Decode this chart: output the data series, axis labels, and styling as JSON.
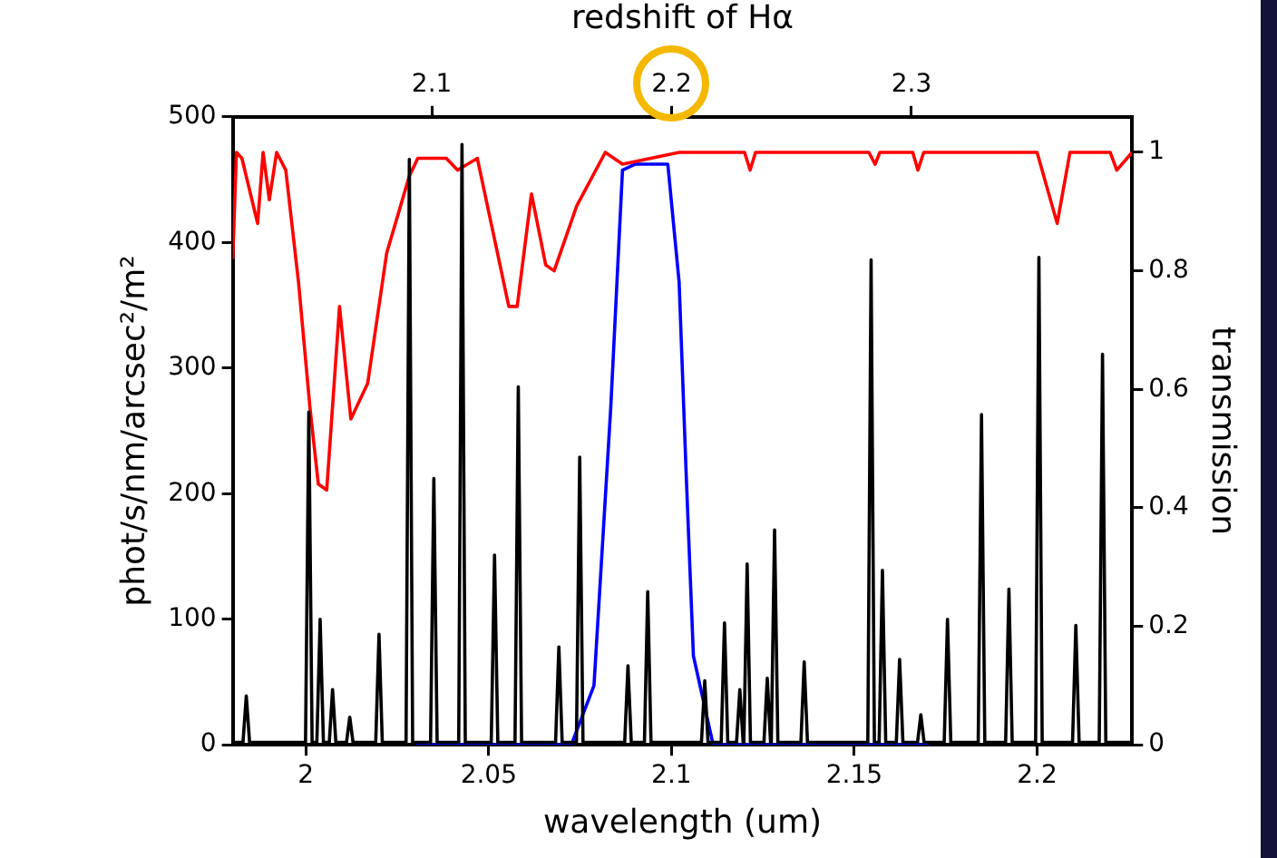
{
  "chart_data": {
    "type": "line",
    "xlabel": "wavelength (um)",
    "ylabel": "phot/s/nm/arcsec²/m²",
    "y2label": "transmission",
    "x2label": "redshift of Hα",
    "xlim": [
      1.98,
      2.226
    ],
    "xticks": [
      2,
      2.05,
      2.1,
      2.15,
      2.2
    ],
    "x2lim": [
      2.017,
      2.392
    ],
    "x2ticks": [
      2.1,
      2.2,
      2.3
    ],
    "ylim": [
      0,
      500
    ],
    "yticks": [
      0,
      100,
      200,
      300,
      400,
      500
    ],
    "y2lim": [
      0,
      1.06
    ],
    "y2ticks": [
      0,
      0.2,
      0.4,
      0.6,
      0.8,
      1
    ],
    "grid": false,
    "series": [
      {
        "color": "#000000",
        "x": [
          1.98,
          1.9828,
          1.9837,
          1.9846,
          1.9999,
          2.0008,
          2.0017,
          2.003,
          2.0039,
          2.0048,
          2.0064,
          2.0073,
          2.0082,
          2.0111,
          2.012,
          2.0129,
          2.0191,
          2.02,
          2.0209,
          2.0274,
          2.0283,
          2.0292,
          2.0341,
          2.035,
          2.0359,
          2.0418,
          2.0427,
          2.0436,
          2.0507,
          2.0516,
          2.0525,
          2.0572,
          2.0581,
          2.059,
          2.0683,
          2.0692,
          2.0701,
          2.074,
          2.0749,
          2.0758,
          2.0872,
          2.0881,
          2.089,
          2.0926,
          2.0935,
          2.0944,
          2.1082,
          2.1091,
          2.11,
          2.1136,
          2.1145,
          2.1154,
          2.1178,
          2.1187,
          2.1196,
          2.1198,
          2.1207,
          2.1216,
          2.1253,
          2.1262,
          2.1271,
          2.1273,
          2.1282,
          2.1291,
          2.1354,
          2.1363,
          2.1372,
          2.1537,
          2.1546,
          2.1555,
          2.1568,
          2.1577,
          2.1586,
          2.1615,
          2.1624,
          2.1633,
          2.1673,
          2.1682,
          2.1691,
          2.1746,
          2.1755,
          2.1764,
          2.1839,
          2.1848,
          2.1857,
          2.1914,
          2.1923,
          2.1932,
          2.1996,
          2.2005,
          2.2014,
          2.2097,
          2.2106,
          2.2115,
          2.217,
          2.2179,
          2.2188,
          2.226
        ],
        "values": [
          2,
          2,
          39,
          2,
          2,
          265,
          2,
          2,
          100,
          2,
          2,
          44,
          2,
          2,
          22,
          2,
          2,
          88,
          2,
          2,
          466,
          2,
          2,
          212,
          2,
          2,
          478,
          2,
          2,
          151,
          2,
          2,
          285,
          2,
          2,
          78,
          2,
          2,
          229,
          2,
          2,
          63,
          2,
          2,
          122,
          2,
          2,
          51,
          2,
          2,
          97,
          2,
          2,
          44,
          2,
          2,
          144,
          2,
          2,
          53,
          2,
          2,
          171,
          2,
          2,
          66,
          2,
          2,
          386,
          2,
          2,
          139,
          2,
          2,
          68,
          2,
          2,
          24,
          2,
          2,
          100,
          2,
          2,
          263,
          2,
          2,
          124,
          2,
          2,
          388,
          2,
          2,
          95,
          2,
          2,
          311,
          2,
          2
        ]
      },
      {
        "color": "#ff0000",
        "axis": "y2",
        "x": [
          1.98,
          1.981,
          1.9825,
          1.9868,
          1.9883,
          1.99,
          1.992,
          1.9945,
          1.998,
          2.0011,
          2.0034,
          2.0057,
          2.0092,
          2.0123,
          2.0169,
          2.0221,
          2.0283,
          2.0306,
          2.0384,
          2.0415,
          2.0469,
          2.0555,
          2.0578,
          2.0617,
          2.0656,
          2.0679,
          2.0741,
          2.0819,
          2.0866,
          2.1021,
          2.12,
          2.1215,
          2.123,
          2.154,
          2.1557,
          2.157,
          2.166,
          2.1674,
          2.169,
          2.2,
          2.2055,
          2.209,
          2.22,
          2.2218,
          2.226
        ],
        "values": [
          0.82,
          1,
          0.99,
          0.88,
          1,
          0.92,
          1,
          0.97,
          0.78,
          0.57,
          0.44,
          0.43,
          0.74,
          0.55,
          0.61,
          0.83,
          0.96,
          0.99,
          0.99,
          0.97,
          0.99,
          0.74,
          0.74,
          0.93,
          0.81,
          0.8,
          0.91,
          1,
          0.98,
          1,
          1,
          0.97,
          1,
          1,
          0.98,
          1,
          1,
          0.97,
          1,
          1,
          0.88,
          1,
          1,
          0.97,
          1
        ]
      },
      {
        "color": "#0000ff",
        "axis": "y2",
        "x": [
          2.03,
          2.0726,
          2.0788,
          2.0834,
          2.0866,
          2.09,
          2.099,
          2.1021,
          2.104,
          2.106,
          2.1114,
          2.1705
        ],
        "values": [
          0,
          0,
          0.1,
          0.57,
          0.97,
          0.98,
          0.98,
          0.78,
          0.46,
          0.15,
          0,
          0
        ]
      }
    ]
  }
}
